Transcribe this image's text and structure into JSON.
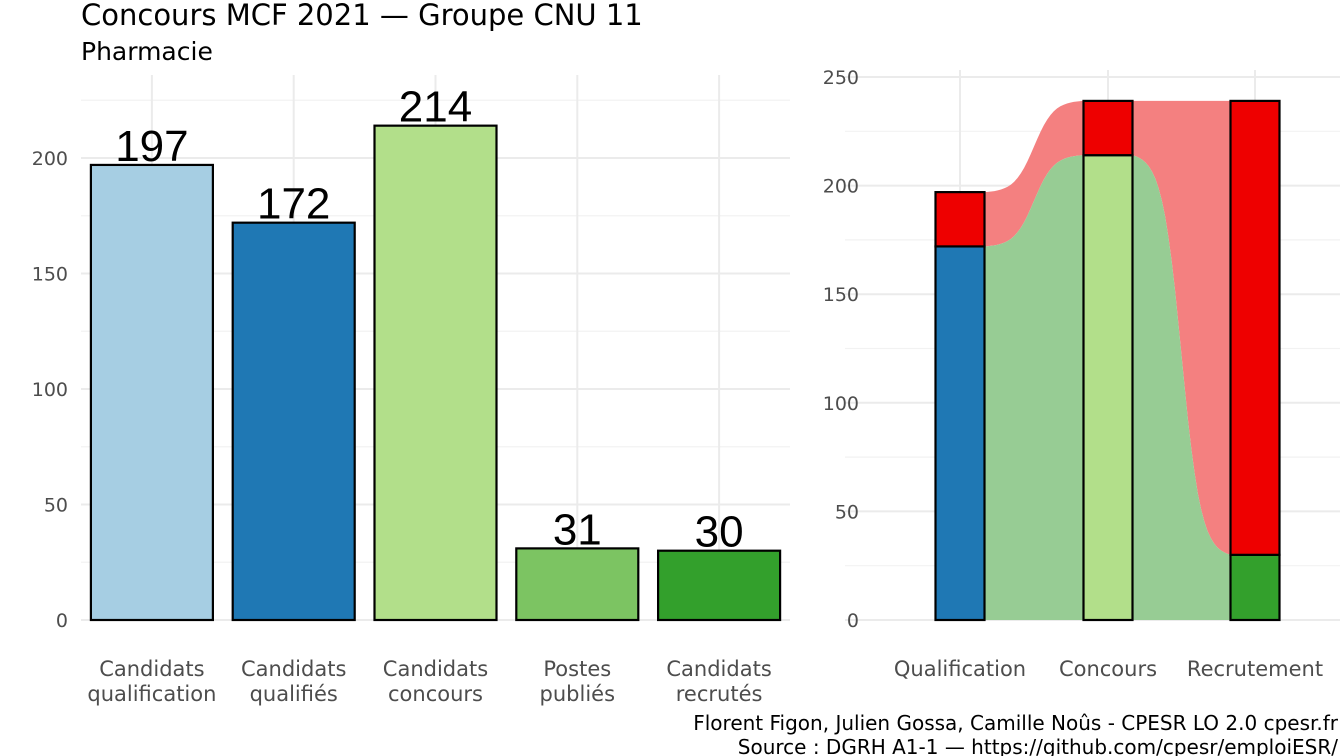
{
  "header": {
    "title": "Concours MCF  2021  —  Groupe CNU 11",
    "subtitle": "Pharmacie"
  },
  "caption": {
    "line1": "Florent Figon, Julien Gossa, Camille Noûs - CPESR LO 2.0 cpesr.fr",
    "line2": "Source : DGRH A1-1 — https://github.com/cpesr/emploiESR/"
  },
  "chart_data": [
    {
      "type": "bar",
      "categories": [
        [
          "Candidats",
          "qualification"
        ],
        [
          "Candidats",
          "qualifiés"
        ],
        [
          "Candidats",
          "concours"
        ],
        [
          "Postes",
          "publiés"
        ],
        [
          "Candidats",
          "recrutés"
        ]
      ],
      "values": [
        197,
        172,
        214,
        31,
        30
      ],
      "colors": [
        "#a6cee3",
        "#1f78b4",
        "#b2df8a",
        "#7cc462",
        "#33a02c"
      ],
      "data_labels": [
        "197",
        "172",
        "214",
        "31",
        "30"
      ],
      "yticks": [
        0,
        50,
        100,
        150,
        200
      ],
      "ylim": [
        0,
        230
      ],
      "grid": true
    },
    {
      "type": "bar",
      "stacked": true,
      "categories": [
        "Qualification",
        "Concours",
        "Recrutement"
      ],
      "series": [
        {
          "values": [
            172,
            214,
            30
          ],
          "colors": [
            "#1f78b4",
            "#b2df8a",
            "#33a02c"
          ]
        },
        {
          "values": [
            25,
            25,
            209
          ],
          "color": "#ee0000"
        }
      ],
      "flows": [
        {
          "color": "#97cc94",
          "from": [
            172,
            214
          ],
          "to": [
            214,
            30
          ]
        },
        {
          "color": "#f48080",
          "from": [
            197,
            239
          ],
          "to": [
            239,
            239
          ]
        }
      ],
      "yticks": [
        0,
        50,
        100,
        150,
        200,
        250
      ],
      "ylim": [
        0,
        250
      ],
      "grid": true
    }
  ]
}
